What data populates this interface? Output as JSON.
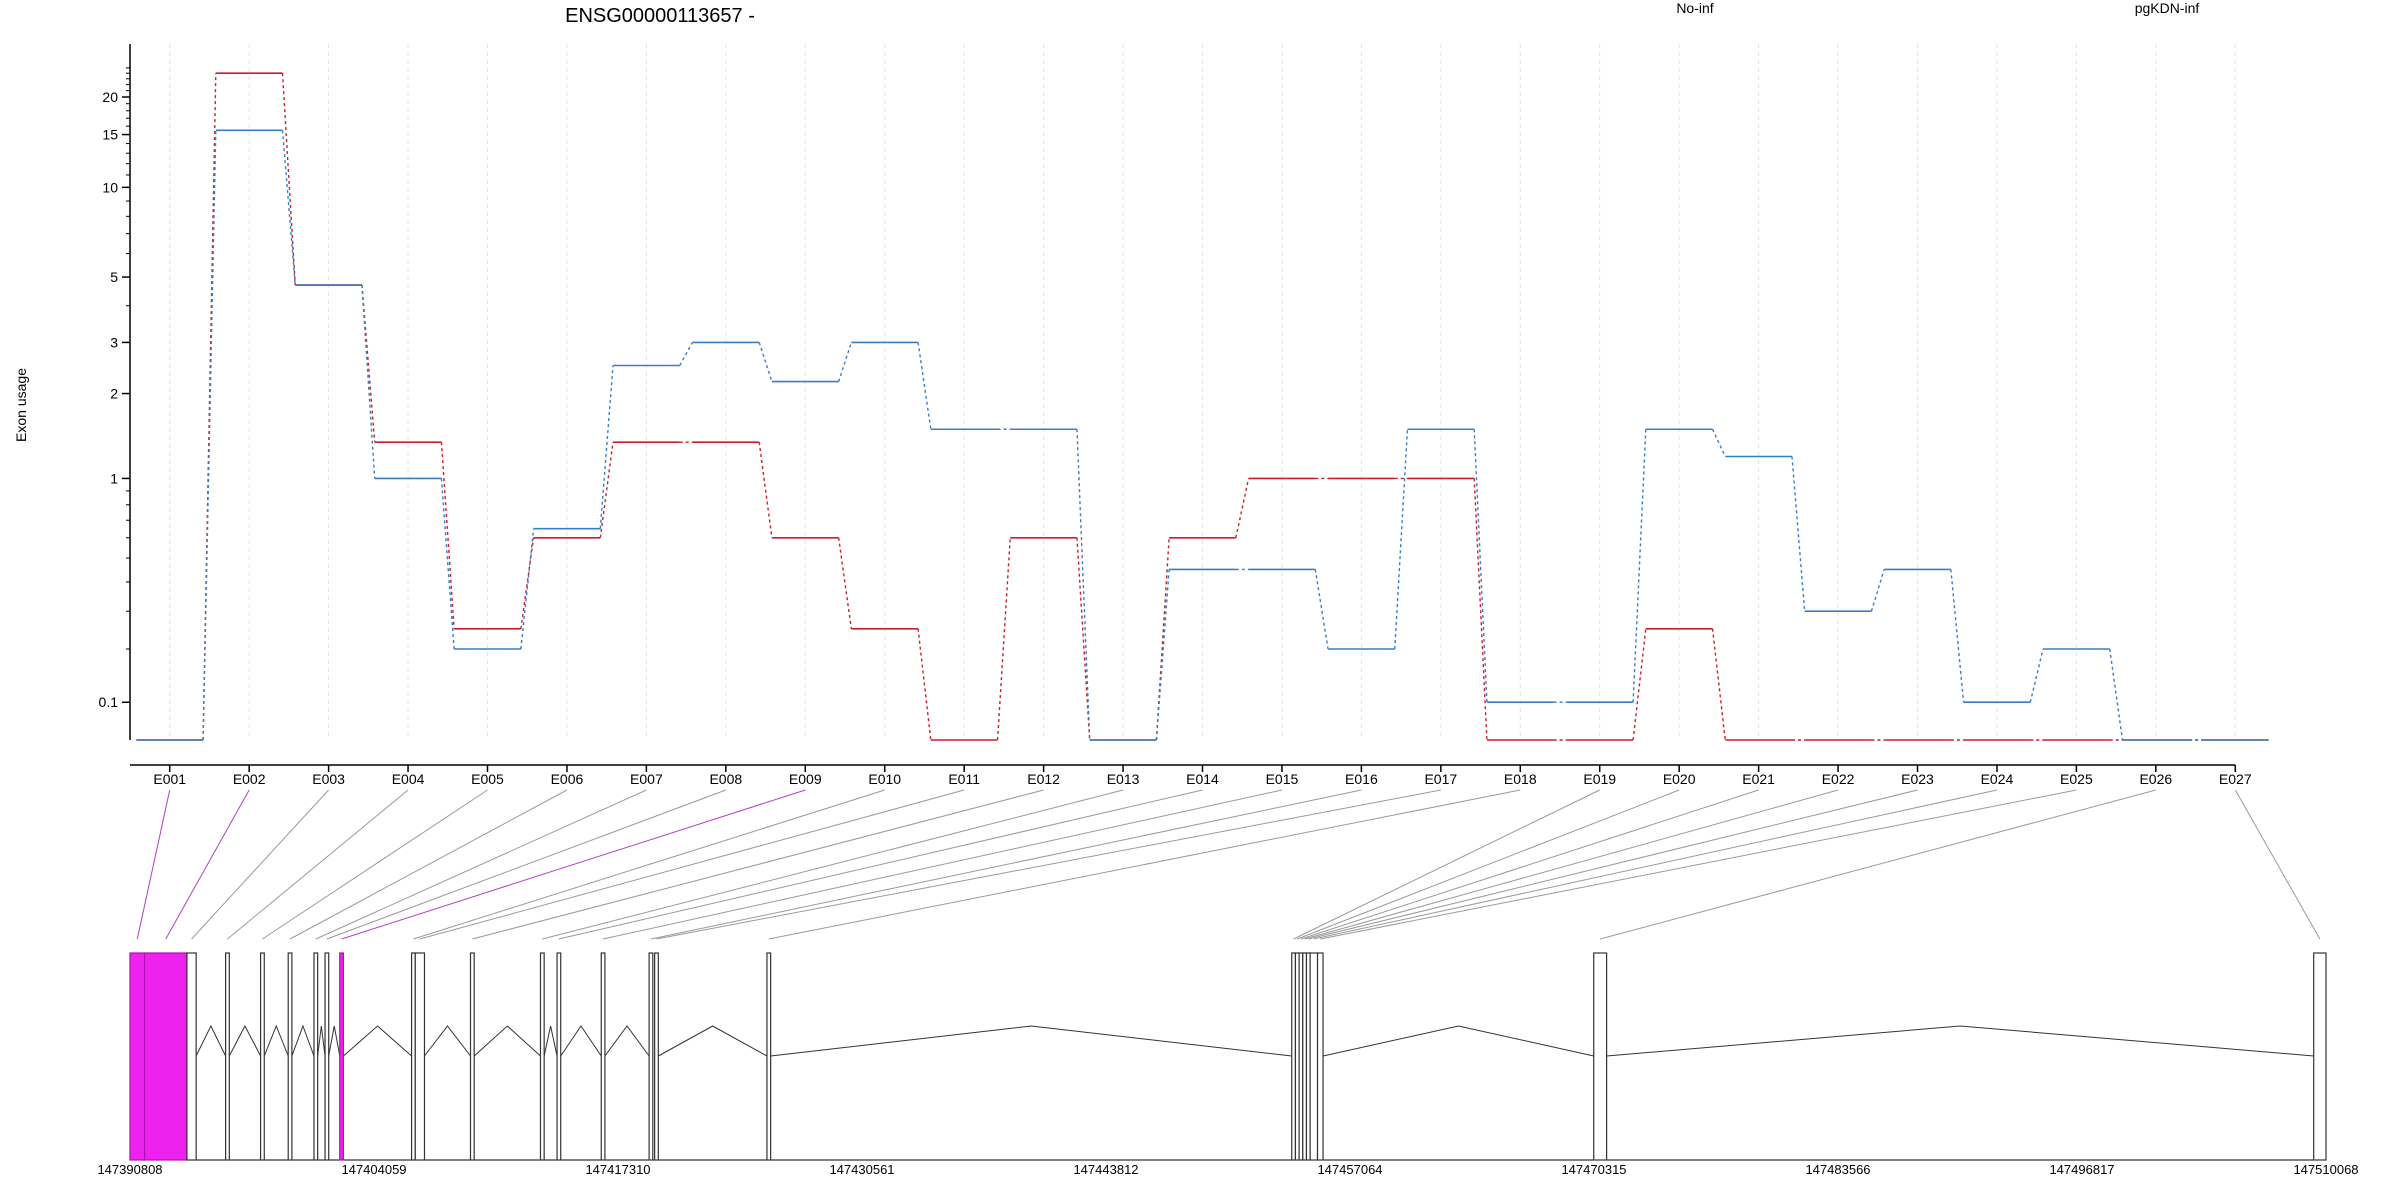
{
  "chart_data": {
    "type": "line",
    "title": "ENSG00000113657 -",
    "ylabel": "Exon usage",
    "xlabel": "",
    "y_scale": "log(y+0.1)",
    "ylim": [
      0.05,
      30
    ],
    "y_major_ticks": [
      {
        "value": 0.1,
        "label": "0.1"
      },
      {
        "value": 1,
        "label": "1"
      },
      {
        "value": 2,
        "label": "2"
      },
      {
        "value": 3,
        "label": "3"
      },
      {
        "value": 5,
        "label": "5"
      },
      {
        "value": 10,
        "label": "10"
      },
      {
        "value": 15,
        "label": "15"
      },
      {
        "value": 20,
        "label": "20"
      }
    ],
    "y_minor_ticks": [
      0.2,
      0.3,
      0.4,
      0.5,
      0.6,
      0.7,
      0.8,
      0.9,
      4,
      6,
      7,
      8,
      9,
      11,
      12,
      13,
      14,
      16,
      17,
      18,
      19,
      21,
      22,
      23,
      24,
      25
    ],
    "grid": "vertical",
    "legend_position": "top",
    "categories": [
      "E001",
      "E002",
      "E003",
      "E004",
      "E005",
      "E006",
      "E007",
      "E008",
      "E009",
      "E010",
      "E011",
      "E012",
      "E013",
      "E014",
      "E015",
      "E016",
      "E017",
      "E018",
      "E019",
      "E020",
      "E021",
      "E022",
      "E023",
      "E024",
      "E025",
      "E026",
      "E027"
    ],
    "series": [
      {
        "name": "No-inf",
        "color": "#cc1f2a",
        "values": [
          0.05,
          24,
          4.7,
          1.35,
          0.25,
          0.6,
          1.35,
          1.35,
          0.6,
          0.25,
          0.05,
          0.6,
          0.05,
          0.6,
          1,
          1,
          1,
          0.05,
          0.05,
          0.25,
          0.05,
          0.05,
          0.05,
          0.05,
          0.05,
          0.05,
          0.05
        ]
      },
      {
        "name": "pgKDN-inf",
        "color": "#3a7ec2",
        "values": [
          0.05,
          15.5,
          4.7,
          1,
          0.2,
          0.65,
          2.5,
          3,
          2.2,
          3,
          1.5,
          1.5,
          0.05,
          0.45,
          0.45,
          0.2,
          1.5,
          0.1,
          0.1,
          1.5,
          1.2,
          0.3,
          0.45,
          0.1,
          0.2,
          0.05,
          0.05
        ]
      }
    ],
    "gene_model": {
      "coord_ticks": [
        "147390808",
        "147404059",
        "147417310",
        "147430561",
        "147443812",
        "147457064",
        "147470315",
        "147483566",
        "147496817",
        "147510068"
      ],
      "coord_range": [
        147390808,
        147510068
      ],
      "highlight_color": "#ee22ee",
      "exons": [
        {
          "id": "E001",
          "start": 147390808,
          "end": 147391600,
          "highlight": true
        },
        {
          "id": "E002",
          "start": 147391600,
          "end": 147393900,
          "highlight": true
        },
        {
          "id": "E003",
          "start": 147393900,
          "end": 147394400,
          "highlight": false
        },
        {
          "id": "E004",
          "start": 147396000,
          "end": 147396200,
          "highlight": false
        },
        {
          "id": "E005",
          "start": 147397900,
          "end": 147398100,
          "highlight": false
        },
        {
          "id": "E006",
          "start": 147399400,
          "end": 147399600,
          "highlight": false
        },
        {
          "id": "E007",
          "start": 147400800,
          "end": 147401000,
          "highlight": false
        },
        {
          "id": "E008",
          "start": 147401400,
          "end": 147401600,
          "highlight": false
        },
        {
          "id": "E009",
          "start": 147402200,
          "end": 147402400,
          "highlight": true
        },
        {
          "id": "E010",
          "start": 147406100,
          "end": 147406300,
          "highlight": false
        },
        {
          "id": "E011",
          "start": 147406300,
          "end": 147406800,
          "highlight": false
        },
        {
          "id": "E012",
          "start": 147409300,
          "end": 147409500,
          "highlight": false
        },
        {
          "id": "E013",
          "start": 147413100,
          "end": 147413300,
          "highlight": false
        },
        {
          "id": "E014",
          "start": 147414000,
          "end": 147414200,
          "highlight": false
        },
        {
          "id": "E015",
          "start": 147416400,
          "end": 147416600,
          "highlight": false
        },
        {
          "id": "E016",
          "start": 147419000,
          "end": 147419200,
          "highlight": false
        },
        {
          "id": "E017",
          "start": 147419300,
          "end": 147419500,
          "highlight": false
        },
        {
          "id": "E018",
          "start": 147425400,
          "end": 147425600,
          "highlight": false
        },
        {
          "id": "E019",
          "start": 147453900,
          "end": 147454100,
          "highlight": false
        },
        {
          "id": "E020",
          "start": 147454100,
          "end": 147454300,
          "highlight": false
        },
        {
          "id": "E021",
          "start": 147454300,
          "end": 147454500,
          "highlight": false
        },
        {
          "id": "E022",
          "start": 147454500,
          "end": 147454700,
          "highlight": false
        },
        {
          "id": "E023",
          "start": 147454700,
          "end": 147454900,
          "highlight": false
        },
        {
          "id": "E024",
          "start": 147454900,
          "end": 147455300,
          "highlight": false
        },
        {
          "id": "E025",
          "start": 147455300,
          "end": 147455600,
          "highlight": false
        },
        {
          "id": "E026",
          "start": 147470300,
          "end": 147471000,
          "highlight": false
        },
        {
          "id": "E027",
          "start": 147509400,
          "end": 147510068,
          "highlight": false
        }
      ]
    }
  }
}
